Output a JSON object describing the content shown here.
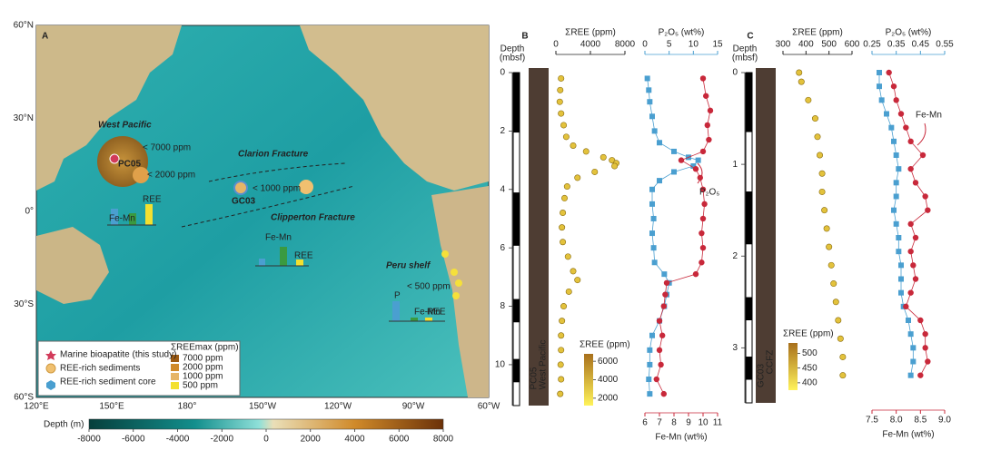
{
  "panel_a": {
    "label": "A",
    "x_labels": [
      "120°E",
      "150°E",
      "180°",
      "150°W",
      "120°W",
      "90°W",
      "60°W"
    ],
    "y_labels": [
      "60°N",
      "30°N",
      "0°",
      "30°S",
      "60°S"
    ],
    "regions": [
      "West Pacific",
      "Clarion Fracture",
      "Clipperton Fracture",
      "Peru shelf"
    ],
    "sites": [
      "PC05",
      "GC03"
    ],
    "bubble_labels": [
      "< 7000 ppm",
      "< 2000 ppm",
      "< 1000 ppm",
      "< 500 ppm"
    ],
    "bar_labels": [
      "Fe-Mn",
      "REE",
      "P"
    ],
    "legend": {
      "items": [
        "Marine bioapatite (this study)",
        "REE-rich sediments",
        "REE-rich sediment core"
      ],
      "scale_title": "ΣREEmax (ppm)",
      "scale": [
        "7000 ppm",
        "2000 ppm",
        "1000 ppm",
        "500 ppm"
      ]
    },
    "depth_bar": {
      "title": "Depth (m)",
      "lim": [
        -8000,
        8000
      ],
      "ticks": [
        -8000,
        -6000,
        -4000,
        -2000,
        0,
        2000,
        4000,
        6000,
        8000
      ]
    }
  },
  "chart_data": [
    {
      "type": "depth-profile",
      "label": "B",
      "depth_title": [
        "Depth",
        "(mbsf)"
      ],
      "core_labels": [
        "PC05",
        "West Pacific"
      ],
      "ylim": [
        0,
        11.4
      ],
      "yticks": [
        0,
        2,
        4,
        6,
        8,
        10
      ],
      "annotation": "P₂O₅",
      "series": [
        {
          "name": "ΣREE (ppm)",
          "color": "#e3c23c",
          "axis": "top",
          "xlim": [
            0,
            8000
          ],
          "xticks": [
            0,
            4000,
            8000
          ],
          "y": [
            0.2,
            0.6,
            1.0,
            1.4,
            1.8,
            2.2,
            2.5,
            2.7,
            2.9,
            3.0,
            3.1,
            3.2,
            3.4,
            3.6,
            3.9,
            4.3,
            4.8,
            5.3,
            5.8,
            6.3,
            6.8,
            7.1,
            7.5,
            8.0,
            8.5,
            9.0,
            9.5,
            10.0,
            10.5,
            11.0
          ],
          "x": [
            600,
            500,
            450,
            600,
            900,
            1200,
            2000,
            3500,
            5500,
            6500,
            7000,
            6800,
            4500,
            2500,
            1300,
            1000,
            800,
            700,
            800,
            1400,
            2000,
            2500,
            1500,
            900,
            700,
            600,
            600,
            550,
            600,
            500
          ]
        },
        {
          "name": "P₂O₅ (wt%)",
          "color": "#4a9fd0",
          "axis": "top",
          "xlim": [
            0,
            15
          ],
          "xticks": [
            0,
            5,
            10,
            15
          ],
          "y": [
            0.2,
            0.6,
            1.0,
            1.5,
            2.0,
            2.4,
            2.7,
            2.9,
            3.0,
            3.2,
            3.4,
            3.7,
            4.0,
            4.5,
            5.0,
            5.5,
            6.0,
            6.5,
            6.9,
            7.2,
            7.6,
            8.0,
            8.5,
            9.0,
            9.5,
            10.0,
            10.5,
            11.0
          ],
          "x": [
            0.5,
            0.8,
            1.0,
            1.5,
            2.0,
            3,
            6,
            9,
            11,
            10,
            6,
            3,
            1.5,
            1.5,
            1.8,
            1.5,
            1.8,
            2.0,
            4,
            5,
            4.5,
            4,
            3,
            1.5,
            1,
            1,
            0.8,
            1
          ]
        },
        {
          "name": "Fe-Mn (wt%)",
          "color": "#c8283a",
          "axis": "bottom",
          "xlim": [
            6,
            11
          ],
          "xticks": [
            6,
            7,
            8,
            9,
            10,
            11
          ],
          "y": [
            0.2,
            0.8,
            1.3,
            1.8,
            2.3,
            2.7,
            3.0,
            3.3,
            3.6,
            4.0,
            4.5,
            5.0,
            5.5,
            6.0,
            6.5,
            6.9,
            7.2,
            7.6,
            8.0,
            8.5,
            9.0,
            9.5,
            10.0,
            10.5,
            11.0
          ],
          "x": [
            10,
            10.2,
            10.5,
            10.3,
            10.4,
            10,
            8.5,
            9.5,
            9.8,
            10,
            10.1,
            10,
            9.9,
            10,
            9.9,
            9.5,
            7.5,
            7.4,
            7.3,
            7.0,
            7.2,
            7.0,
            7.1,
            6.8,
            7.3
          ]
        }
      ],
      "colorbar": {
        "title": "ΣREE (ppm)",
        "lim": [
          1200,
          6800
        ],
        "ticks": [
          2000,
          4000,
          6000
        ]
      }
    },
    {
      "type": "depth-profile",
      "label": "C",
      "depth_title": [
        "Depth",
        "(mbsf)"
      ],
      "core_labels": [
        "GC03",
        "CCFZ"
      ],
      "ylim": [
        0,
        3.6
      ],
      "yticks": [
        0,
        1,
        2,
        3
      ],
      "annotation": "Fe-Mn",
      "series": [
        {
          "name": "ΣREE (ppm)",
          "color": "#e3c23c",
          "axis": "top",
          "xlim": [
            300,
            600
          ],
          "xticks": [
            300,
            400,
            500,
            600
          ],
          "y": [
            0.0,
            0.1,
            0.3,
            0.5,
            0.7,
            0.9,
            1.1,
            1.3,
            1.5,
            1.7,
            1.9,
            2.1,
            2.3,
            2.5,
            2.7,
            2.9,
            3.1,
            3.3
          ],
          "x": [
            370,
            380,
            410,
            440,
            450,
            460,
            470,
            470,
            480,
            490,
            500,
            510,
            520,
            530,
            540,
            550,
            560,
            560
          ]
        },
        {
          "name": "P₂O₅ (wt%)",
          "color": "#4a9fd0",
          "axis": "top",
          "xlim": [
            0.25,
            0.55
          ],
          "xticks": [
            0.25,
            0.35,
            0.45,
            0.55
          ],
          "y": [
            0,
            0.15,
            0.3,
            0.45,
            0.6,
            0.75,
            0.9,
            1.05,
            1.2,
            1.35,
            1.5,
            1.65,
            1.8,
            1.95,
            2.1,
            2.25,
            2.4,
            2.55,
            2.7,
            2.85,
            3.0,
            3.15,
            3.3
          ],
          "x": [
            0.28,
            0.28,
            0.29,
            0.31,
            0.33,
            0.34,
            0.35,
            0.36,
            0.35,
            0.35,
            0.34,
            0.35,
            0.36,
            0.36,
            0.37,
            0.37,
            0.37,
            0.38,
            0.4,
            0.41,
            0.42,
            0.42,
            0.41
          ]
        },
        {
          "name": "Fe-Mn (wt%)",
          "color": "#c8283a",
          "axis": "bottom",
          "xlim": [
            7.5,
            9.0
          ],
          "xticks": [
            7.5,
            {
              "value": 8,
              "label": "8.0"
            },
            8.5,
            {
              "value": 9,
              "label": "9.0"
            }
          ],
          "y": [
            0,
            0.15,
            0.3,
            0.45,
            0.6,
            0.75,
            0.9,
            1.05,
            1.2,
            1.35,
            1.5,
            1.65,
            1.8,
            1.95,
            2.1,
            2.25,
            2.4,
            2.55,
            2.7,
            2.85,
            3.0,
            3.15,
            3.3
          ],
          "x": [
            7.85,
            7.95,
            8.0,
            8.1,
            8.2,
            8.3,
            8.55,
            8.3,
            8.4,
            8.6,
            8.65,
            8.3,
            8.4,
            8.3,
            8.35,
            8.4,
            8.3,
            8.2,
            8.5,
            8.6,
            8.6,
            8.65,
            8.5
          ]
        }
      ],
      "colorbar": {
        "title": "ΣREE (ppm)",
        "lim": [
          375,
          535
        ],
        "ticks": [
          400,
          450,
          500
        ]
      }
    }
  ]
}
